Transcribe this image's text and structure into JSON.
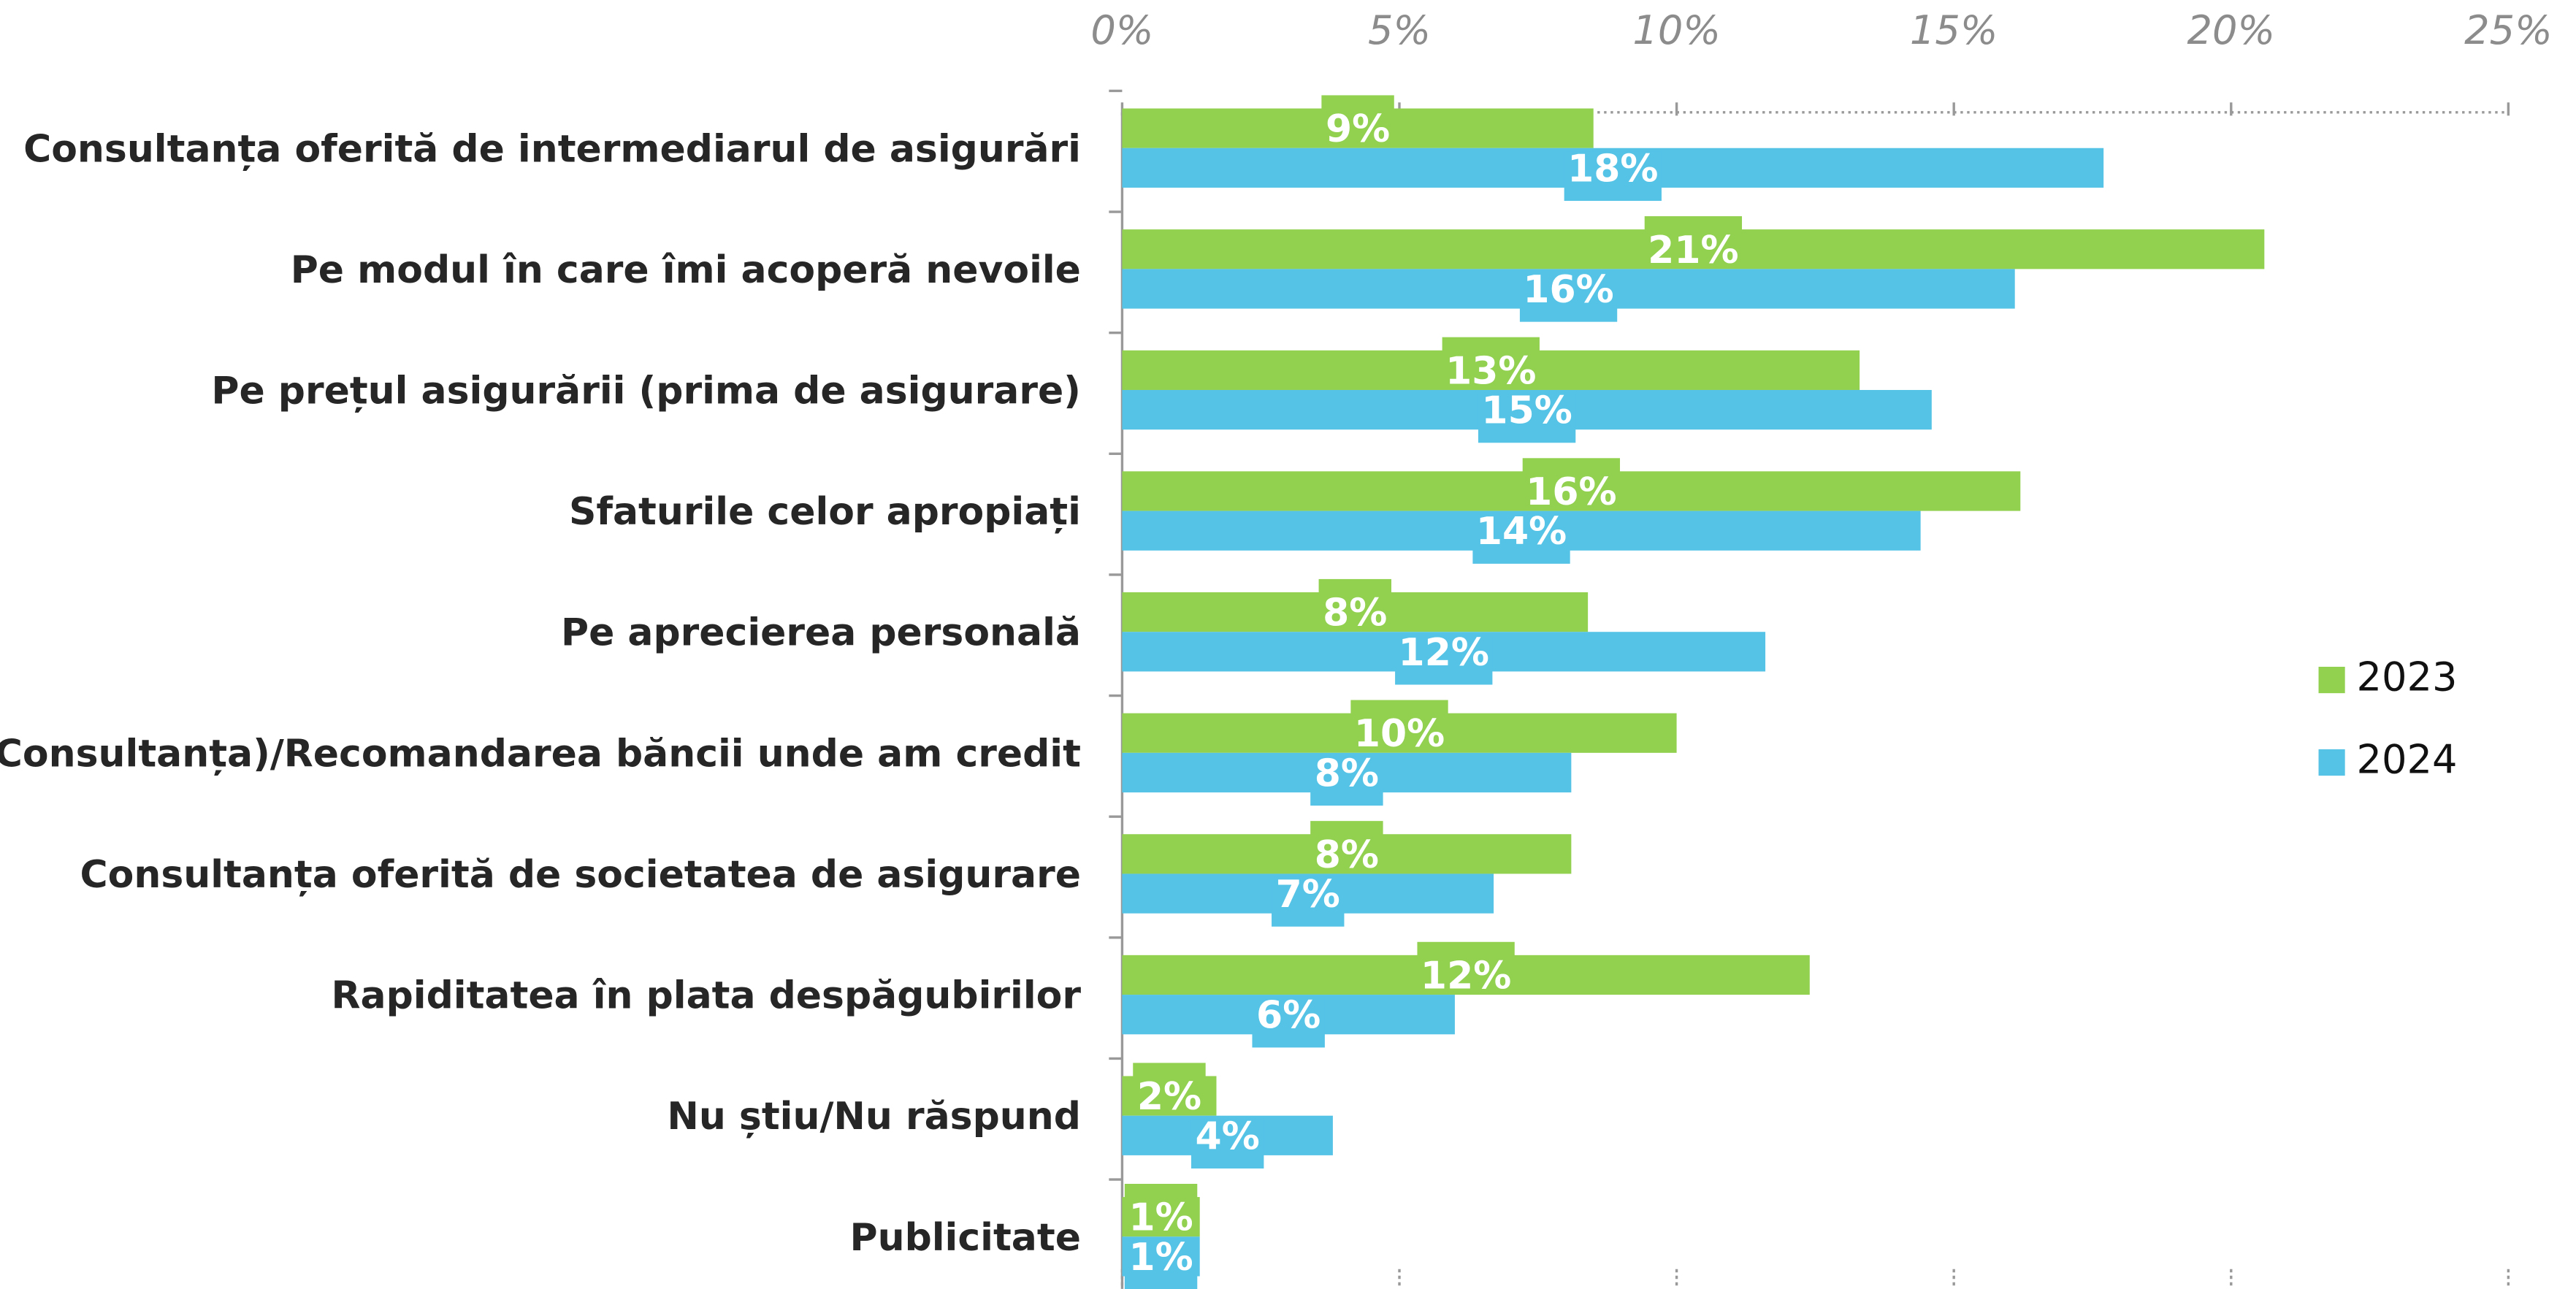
{
  "chart_data": {
    "type": "bar",
    "orientation": "horizontal",
    "categories": [
      "Consultanța oferită de intermediarul de asigurări",
      "Pe modul în care îmi acoperă nevoile",
      "Pe prețul asigurării (prima de asigurare)",
      "Sfaturile celor apropiați",
      "Pe aprecierea personală",
      "(Consultanța)/Recomandarea băncii unde am credit",
      "Consultanța oferită de societatea de asigurare",
      "Rapiditatea în plata despăgubirilor",
      "Nu știu/Nu răspund",
      "Publicitate"
    ],
    "series": [
      {
        "name": "2023",
        "color": "#92d050",
        "values": [
          8.5,
          20.6,
          13.3,
          16.2,
          8.4,
          10.0,
          8.1,
          12.4,
          1.7,
          1.4
        ],
        "value_labels": [
          "9%",
          "21%",
          "13%",
          "16%",
          "8%",
          "10%",
          "8%",
          "12%",
          "2%",
          "1%"
        ]
      },
      {
        "name": "2024",
        "color": "#55c3e6",
        "values": [
          17.7,
          16.1,
          14.6,
          14.4,
          11.6,
          8.1,
          6.7,
          6.0,
          3.8,
          1.4
        ],
        "value_labels": [
          "18%",
          "16%",
          "15%",
          "14%",
          "12%",
          "8%",
          "7%",
          "6%",
          "4%",
          "1%"
        ]
      }
    ],
    "xlim": [
      0,
      25
    ],
    "xticks": [
      {
        "value": 0,
        "label": "0%"
      },
      {
        "value": 5,
        "label": "5%"
      },
      {
        "value": 10,
        "label": "10%"
      },
      {
        "value": 15,
        "label": "15%"
      },
      {
        "value": 20,
        "label": "20%"
      },
      {
        "value": 25,
        "label": "25%"
      }
    ],
    "legend": "right"
  }
}
